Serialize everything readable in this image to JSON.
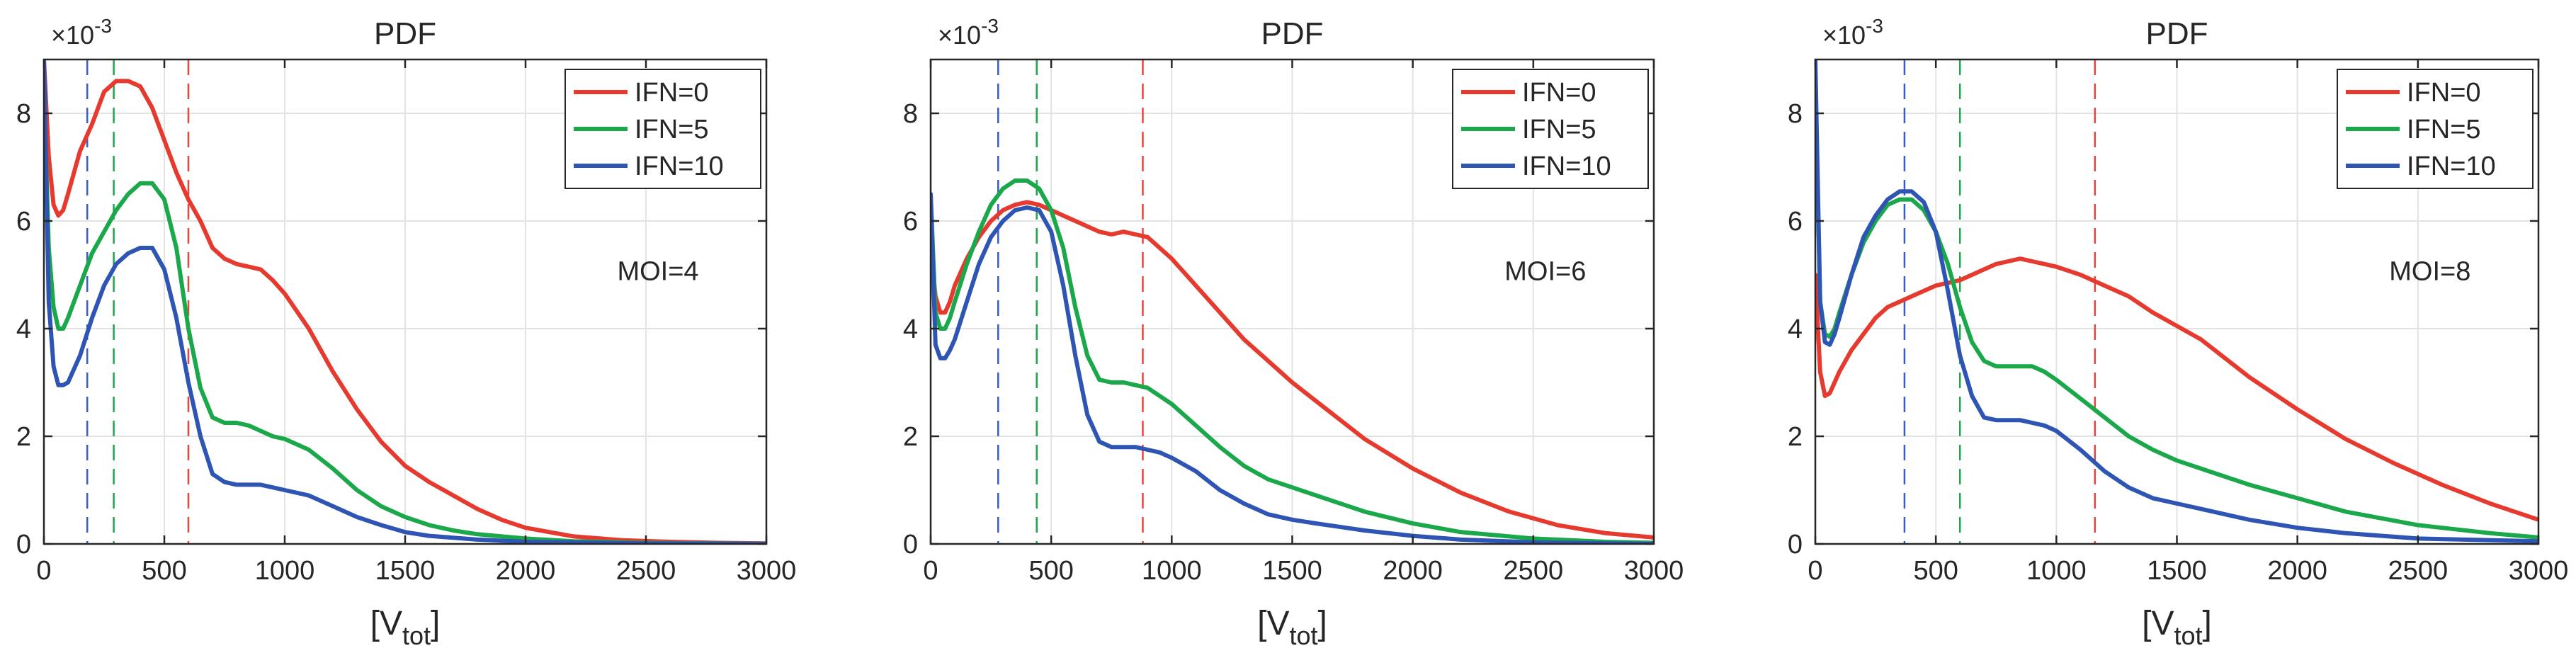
{
  "chart_data": [
    {
      "type": "line",
      "title": "PDF",
      "xlabel": "[V",
      "xlabel_sub": "tot",
      "xlabel_close": "]",
      "ylabel": "",
      "y_exponent_base": "×10",
      "y_exponent_power": "-3",
      "xlim": [
        0,
        3000
      ],
      "ylim": [
        0,
        9
      ],
      "xticks": [
        0,
        500,
        1000,
        1500,
        2000,
        2500,
        3000
      ],
      "yticks": [
        0,
        2,
        4,
        6,
        8
      ],
      "grid": true,
      "legend": "top-right",
      "annotation": "MOI=4",
      "vlines": [
        {
          "x": 180,
          "color": "#3a5cbf"
        },
        {
          "x": 290,
          "color": "#1aa84a"
        },
        {
          "x": 600,
          "color": "#e8453c"
        }
      ],
      "series": [
        {
          "name": "IFN=0",
          "color": "#e63a2e",
          "x": [
            0,
            20,
            40,
            60,
            80,
            100,
            150,
            200,
            250,
            300,
            350,
            400,
            450,
            500,
            550,
            600,
            650,
            700,
            750,
            800,
            850,
            900,
            950,
            1000,
            1100,
            1200,
            1300,
            1400,
            1500,
            1600,
            1700,
            1800,
            1900,
            2000,
            2200,
            2400,
            2600,
            2800,
            3000
          ],
          "values": [
            9.0,
            7.2,
            6.3,
            6.1,
            6.2,
            6.5,
            7.3,
            7.8,
            8.4,
            8.6,
            8.6,
            8.5,
            8.1,
            7.5,
            6.9,
            6.4,
            6.0,
            5.5,
            5.3,
            5.2,
            5.15,
            5.1,
            4.9,
            4.65,
            4.0,
            3.2,
            2.5,
            1.9,
            1.45,
            1.15,
            0.9,
            0.65,
            0.45,
            0.3,
            0.14,
            0.07,
            0.04,
            0.02,
            0.01
          ]
        },
        {
          "name": "IFN=5",
          "color": "#1aa84a",
          "x": [
            0,
            20,
            40,
            60,
            80,
            100,
            150,
            200,
            250,
            300,
            350,
            400,
            450,
            500,
            550,
            600,
            650,
            700,
            750,
            800,
            850,
            900,
            950,
            1000,
            1100,
            1200,
            1300,
            1400,
            1500,
            1600,
            1700,
            1800,
            2000,
            2200,
            2500,
            3000
          ],
          "values": [
            8.5,
            5.5,
            4.4,
            4.0,
            4.0,
            4.2,
            4.8,
            5.4,
            5.8,
            6.2,
            6.5,
            6.7,
            6.7,
            6.4,
            5.5,
            4.0,
            2.9,
            2.35,
            2.25,
            2.25,
            2.2,
            2.1,
            2.0,
            1.95,
            1.75,
            1.4,
            1.0,
            0.7,
            0.5,
            0.35,
            0.25,
            0.18,
            0.1,
            0.05,
            0.02,
            0.0
          ]
        },
        {
          "name": "IFN=10",
          "color": "#2e55b4",
          "x": [
            0,
            20,
            40,
            60,
            80,
            100,
            150,
            200,
            250,
            300,
            350,
            400,
            450,
            500,
            550,
            600,
            650,
            700,
            750,
            800,
            850,
            900,
            950,
            1000,
            1100,
            1200,
            1300,
            1400,
            1500,
            1600,
            1800,
            2000,
            2500,
            3000
          ],
          "values": [
            9.0,
            4.5,
            3.3,
            2.95,
            2.95,
            3.0,
            3.5,
            4.2,
            4.8,
            5.2,
            5.4,
            5.5,
            5.5,
            5.1,
            4.2,
            3.0,
            2.0,
            1.3,
            1.15,
            1.1,
            1.1,
            1.1,
            1.05,
            1.0,
            0.9,
            0.7,
            0.5,
            0.35,
            0.22,
            0.15,
            0.08,
            0.04,
            0.01,
            0.0
          ]
        }
      ]
    },
    {
      "type": "line",
      "title": "PDF",
      "xlabel": "[V",
      "xlabel_sub": "tot",
      "xlabel_close": "]",
      "ylabel": "",
      "y_exponent_base": "×10",
      "y_exponent_power": "-3",
      "xlim": [
        0,
        3000
      ],
      "ylim": [
        0,
        9
      ],
      "xticks": [
        0,
        500,
        1000,
        1500,
        2000,
        2500,
        3000
      ],
      "yticks": [
        0,
        2,
        4,
        6,
        8
      ],
      "grid": true,
      "legend": "top-right",
      "annotation": "MOI=6",
      "vlines": [
        {
          "x": 280,
          "color": "#3a5cbf"
        },
        {
          "x": 440,
          "color": "#1aa84a"
        },
        {
          "x": 880,
          "color": "#e8453c"
        }
      ],
      "series": [
        {
          "name": "IFN=0",
          "color": "#e63a2e",
          "x": [
            0,
            20,
            40,
            60,
            80,
            100,
            150,
            200,
            250,
            300,
            350,
            400,
            450,
            500,
            550,
            600,
            650,
            700,
            750,
            800,
            850,
            900,
            950,
            1000,
            1100,
            1200,
            1300,
            1400,
            1500,
            1600,
            1800,
            2000,
            2200,
            2400,
            2600,
            2800,
            3000
          ],
          "values": [
            5.5,
            4.6,
            4.3,
            4.3,
            4.5,
            4.8,
            5.3,
            5.7,
            6.0,
            6.2,
            6.3,
            6.35,
            6.3,
            6.2,
            6.1,
            6.0,
            5.9,
            5.8,
            5.75,
            5.8,
            5.75,
            5.7,
            5.5,
            5.3,
            4.8,
            4.3,
            3.8,
            3.4,
            3.0,
            2.65,
            1.95,
            1.4,
            0.95,
            0.6,
            0.35,
            0.2,
            0.12
          ]
        },
        {
          "name": "IFN=5",
          "color": "#1aa84a",
          "x": [
            0,
            20,
            40,
            60,
            80,
            100,
            150,
            200,
            250,
            300,
            350,
            400,
            450,
            500,
            550,
            600,
            650,
            700,
            750,
            800,
            850,
            900,
            950,
            1000,
            1100,
            1200,
            1300,
            1400,
            1500,
            1600,
            1800,
            2000,
            2200,
            2500,
            2800,
            3000
          ],
          "values": [
            6.5,
            4.3,
            4.0,
            4.0,
            4.2,
            4.5,
            5.2,
            5.8,
            6.3,
            6.6,
            6.75,
            6.75,
            6.6,
            6.2,
            5.5,
            4.4,
            3.5,
            3.05,
            3.0,
            3.0,
            2.95,
            2.9,
            2.75,
            2.6,
            2.2,
            1.8,
            1.45,
            1.2,
            1.05,
            0.9,
            0.6,
            0.38,
            0.22,
            0.1,
            0.04,
            0.02
          ]
        },
        {
          "name": "IFN=10",
          "color": "#2e55b4",
          "x": [
            0,
            20,
            40,
            60,
            80,
            100,
            150,
            200,
            250,
            300,
            350,
            400,
            450,
            500,
            550,
            600,
            650,
            700,
            750,
            800,
            850,
            900,
            950,
            1000,
            1100,
            1200,
            1300,
            1400,
            1500,
            1600,
            1800,
            2000,
            2200,
            2500,
            3000
          ],
          "values": [
            6.5,
            3.7,
            3.45,
            3.45,
            3.6,
            3.8,
            4.5,
            5.2,
            5.7,
            6.0,
            6.2,
            6.25,
            6.2,
            5.8,
            4.8,
            3.5,
            2.4,
            1.9,
            1.8,
            1.8,
            1.8,
            1.75,
            1.7,
            1.6,
            1.35,
            1.0,
            0.75,
            0.55,
            0.45,
            0.38,
            0.25,
            0.15,
            0.08,
            0.03,
            0.0
          ]
        }
      ]
    },
    {
      "type": "line",
      "title": "PDF",
      "xlabel": "[V",
      "xlabel_sub": "tot",
      "xlabel_close": "]",
      "ylabel": "",
      "y_exponent_base": "×10",
      "y_exponent_power": "-3",
      "xlim": [
        0,
        3000
      ],
      "ylim": [
        0,
        9
      ],
      "xticks": [
        0,
        500,
        1000,
        1500,
        2000,
        2500,
        3000
      ],
      "yticks": [
        0,
        2,
        4,
        6,
        8
      ],
      "grid": true,
      "legend": "top-right",
      "annotation": "MOI=8",
      "vlines": [
        {
          "x": 370,
          "color": "#3a5cbf"
        },
        {
          "x": 600,
          "color": "#1aa84a"
        },
        {
          "x": 1160,
          "color": "#e8453c"
        }
      ],
      "series": [
        {
          "name": "IFN=0",
          "color": "#e63a2e",
          "x": [
            0,
            20,
            40,
            60,
            80,
            100,
            150,
            200,
            250,
            300,
            350,
            400,
            450,
            500,
            550,
            600,
            650,
            700,
            750,
            800,
            850,
            900,
            950,
            1000,
            1100,
            1200,
            1300,
            1400,
            1500,
            1600,
            1800,
            2000,
            2200,
            2400,
            2600,
            2800,
            3000
          ],
          "values": [
            5.0,
            3.2,
            2.75,
            2.8,
            3.0,
            3.2,
            3.6,
            3.9,
            4.2,
            4.4,
            4.5,
            4.6,
            4.7,
            4.8,
            4.85,
            4.9,
            5.0,
            5.1,
            5.2,
            5.25,
            5.3,
            5.25,
            5.2,
            5.15,
            5.0,
            4.8,
            4.6,
            4.3,
            4.05,
            3.8,
            3.1,
            2.5,
            1.95,
            1.5,
            1.1,
            0.75,
            0.45
          ]
        },
        {
          "name": "IFN=5",
          "color": "#1aa84a",
          "x": [
            0,
            20,
            40,
            60,
            80,
            100,
            150,
            200,
            250,
            300,
            350,
            400,
            450,
            500,
            550,
            600,
            650,
            700,
            750,
            800,
            850,
            900,
            950,
            1000,
            1100,
            1200,
            1300,
            1400,
            1500,
            1600,
            1800,
            2000,
            2200,
            2500,
            2800,
            3000
          ],
          "values": [
            8.5,
            4.5,
            3.9,
            3.85,
            4.0,
            4.3,
            5.0,
            5.6,
            6.0,
            6.3,
            6.4,
            6.4,
            6.2,
            5.8,
            5.2,
            4.4,
            3.75,
            3.4,
            3.3,
            3.3,
            3.3,
            3.3,
            3.2,
            3.05,
            2.7,
            2.35,
            2.0,
            1.75,
            1.55,
            1.4,
            1.1,
            0.85,
            0.6,
            0.35,
            0.2,
            0.12
          ]
        },
        {
          "name": "IFN=10",
          "color": "#2e55b4",
          "x": [
            0,
            20,
            40,
            60,
            80,
            100,
            150,
            200,
            250,
            300,
            350,
            400,
            450,
            500,
            550,
            600,
            650,
            700,
            750,
            800,
            850,
            900,
            950,
            1000,
            1100,
            1200,
            1300,
            1400,
            1500,
            1600,
            1800,
            2000,
            2200,
            2500,
            3000
          ],
          "values": [
            9.0,
            4.5,
            3.75,
            3.7,
            3.9,
            4.2,
            5.0,
            5.7,
            6.1,
            6.4,
            6.55,
            6.55,
            6.35,
            5.8,
            4.7,
            3.5,
            2.75,
            2.35,
            2.3,
            2.3,
            2.3,
            2.25,
            2.2,
            2.1,
            1.75,
            1.35,
            1.05,
            0.85,
            0.75,
            0.65,
            0.45,
            0.3,
            0.2,
            0.1,
            0.05
          ]
        }
      ]
    }
  ]
}
